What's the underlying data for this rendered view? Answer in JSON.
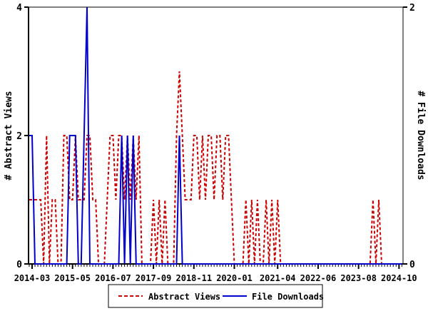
{
  "chart_data": {
    "type": "line",
    "title": "",
    "x_axis": {
      "start_month": "2014-01",
      "months_total": 131,
      "tick_labels": [
        "2014-03",
        "2015-05",
        "2016-07",
        "2017-09",
        "2018-11",
        "2020-01",
        "2021-04",
        "2022-06",
        "2023-08",
        "2024-10"
      ],
      "tick_month_indices": [
        2,
        16,
        30,
        44,
        58,
        72,
        87,
        101,
        115,
        129
      ]
    },
    "left_axis": {
      "label": "# Abstract Views",
      "ticks": [
        0,
        2,
        4
      ],
      "range": [
        0,
        4
      ]
    },
    "right_axis": {
      "label": "# File Downloads",
      "ticks": [
        0,
        2
      ],
      "range": [
        0,
        2
      ]
    },
    "colors": {
      "abstract_views": "#cc0000",
      "file_downloads": "#0000cc",
      "axis": "#000000",
      "background": "#ffffff"
    },
    "series": [
      {
        "name": "Abstract Views",
        "axis": "left",
        "style": "dashed",
        "color": "#cc0000",
        "monthly_values": [
          0,
          1,
          1,
          1,
          1,
          1,
          0,
          2,
          0,
          1,
          1,
          0,
          0,
          2,
          2,
          1,
          1,
          2,
          1,
          1,
          1,
          2,
          2,
          1,
          1,
          0,
          0,
          0,
          1,
          2,
          2,
          1,
          2,
          2,
          1,
          2,
          1,
          2,
          1,
          2,
          0,
          0,
          0,
          0,
          1,
          0,
          1,
          0,
          1,
          0,
          0,
          0,
          2,
          3,
          2,
          1,
          1,
          1,
          2,
          2,
          1,
          2,
          1,
          2,
          2,
          1,
          2,
          2,
          1,
          2,
          2,
          1,
          0,
          0,
          0,
          0,
          1,
          0,
          1,
          0,
          1,
          0,
          0,
          1,
          0,
          1,
          0,
          1,
          0,
          0,
          0,
          0,
          0,
          0,
          0,
          0,
          0,
          0,
          0,
          0,
          0,
          0,
          0,
          0,
          0,
          0,
          0,
          0,
          0,
          0,
          0,
          0,
          0,
          0,
          0,
          0,
          0,
          0,
          0,
          0,
          1,
          0,
          1,
          0,
          0,
          0,
          0,
          0,
          0,
          0,
          0
        ]
      },
      {
        "name": "File Downloads",
        "axis": "right",
        "style": "solid",
        "color": "#0000cc",
        "monthly_values": [
          0,
          1,
          1,
          0,
          0,
          0,
          0,
          0,
          0,
          0,
          0,
          0,
          0,
          0,
          0,
          1,
          1,
          1,
          0,
          0,
          1,
          2,
          0,
          0,
          0,
          0,
          0,
          0,
          0,
          0,
          0,
          0,
          0,
          1,
          0,
          1,
          0,
          1,
          0,
          0,
          0,
          0,
          0,
          0,
          0,
          0,
          0,
          0,
          0,
          0,
          0,
          0,
          0,
          1,
          0,
          0,
          0,
          0,
          0,
          0,
          0,
          0,
          0,
          0,
          0,
          0,
          0,
          0,
          0,
          0,
          0,
          0,
          0,
          0,
          0,
          0,
          0,
          0,
          0,
          0,
          0,
          0,
          0,
          0,
          0,
          0,
          0,
          0,
          0,
          0,
          0,
          0,
          0,
          0,
          0,
          0,
          0,
          0,
          0,
          0,
          0,
          0,
          0,
          0,
          0,
          0,
          0,
          0,
          0,
          0,
          0,
          0,
          0,
          0,
          0,
          0,
          0,
          0,
          0,
          0,
          0,
          0,
          0,
          0,
          0,
          0,
          0,
          0,
          0,
          0,
          0
        ]
      }
    ],
    "legend": {
      "position": "bottom-center",
      "entries": [
        "Abstract Views",
        "File Downloads"
      ]
    }
  }
}
